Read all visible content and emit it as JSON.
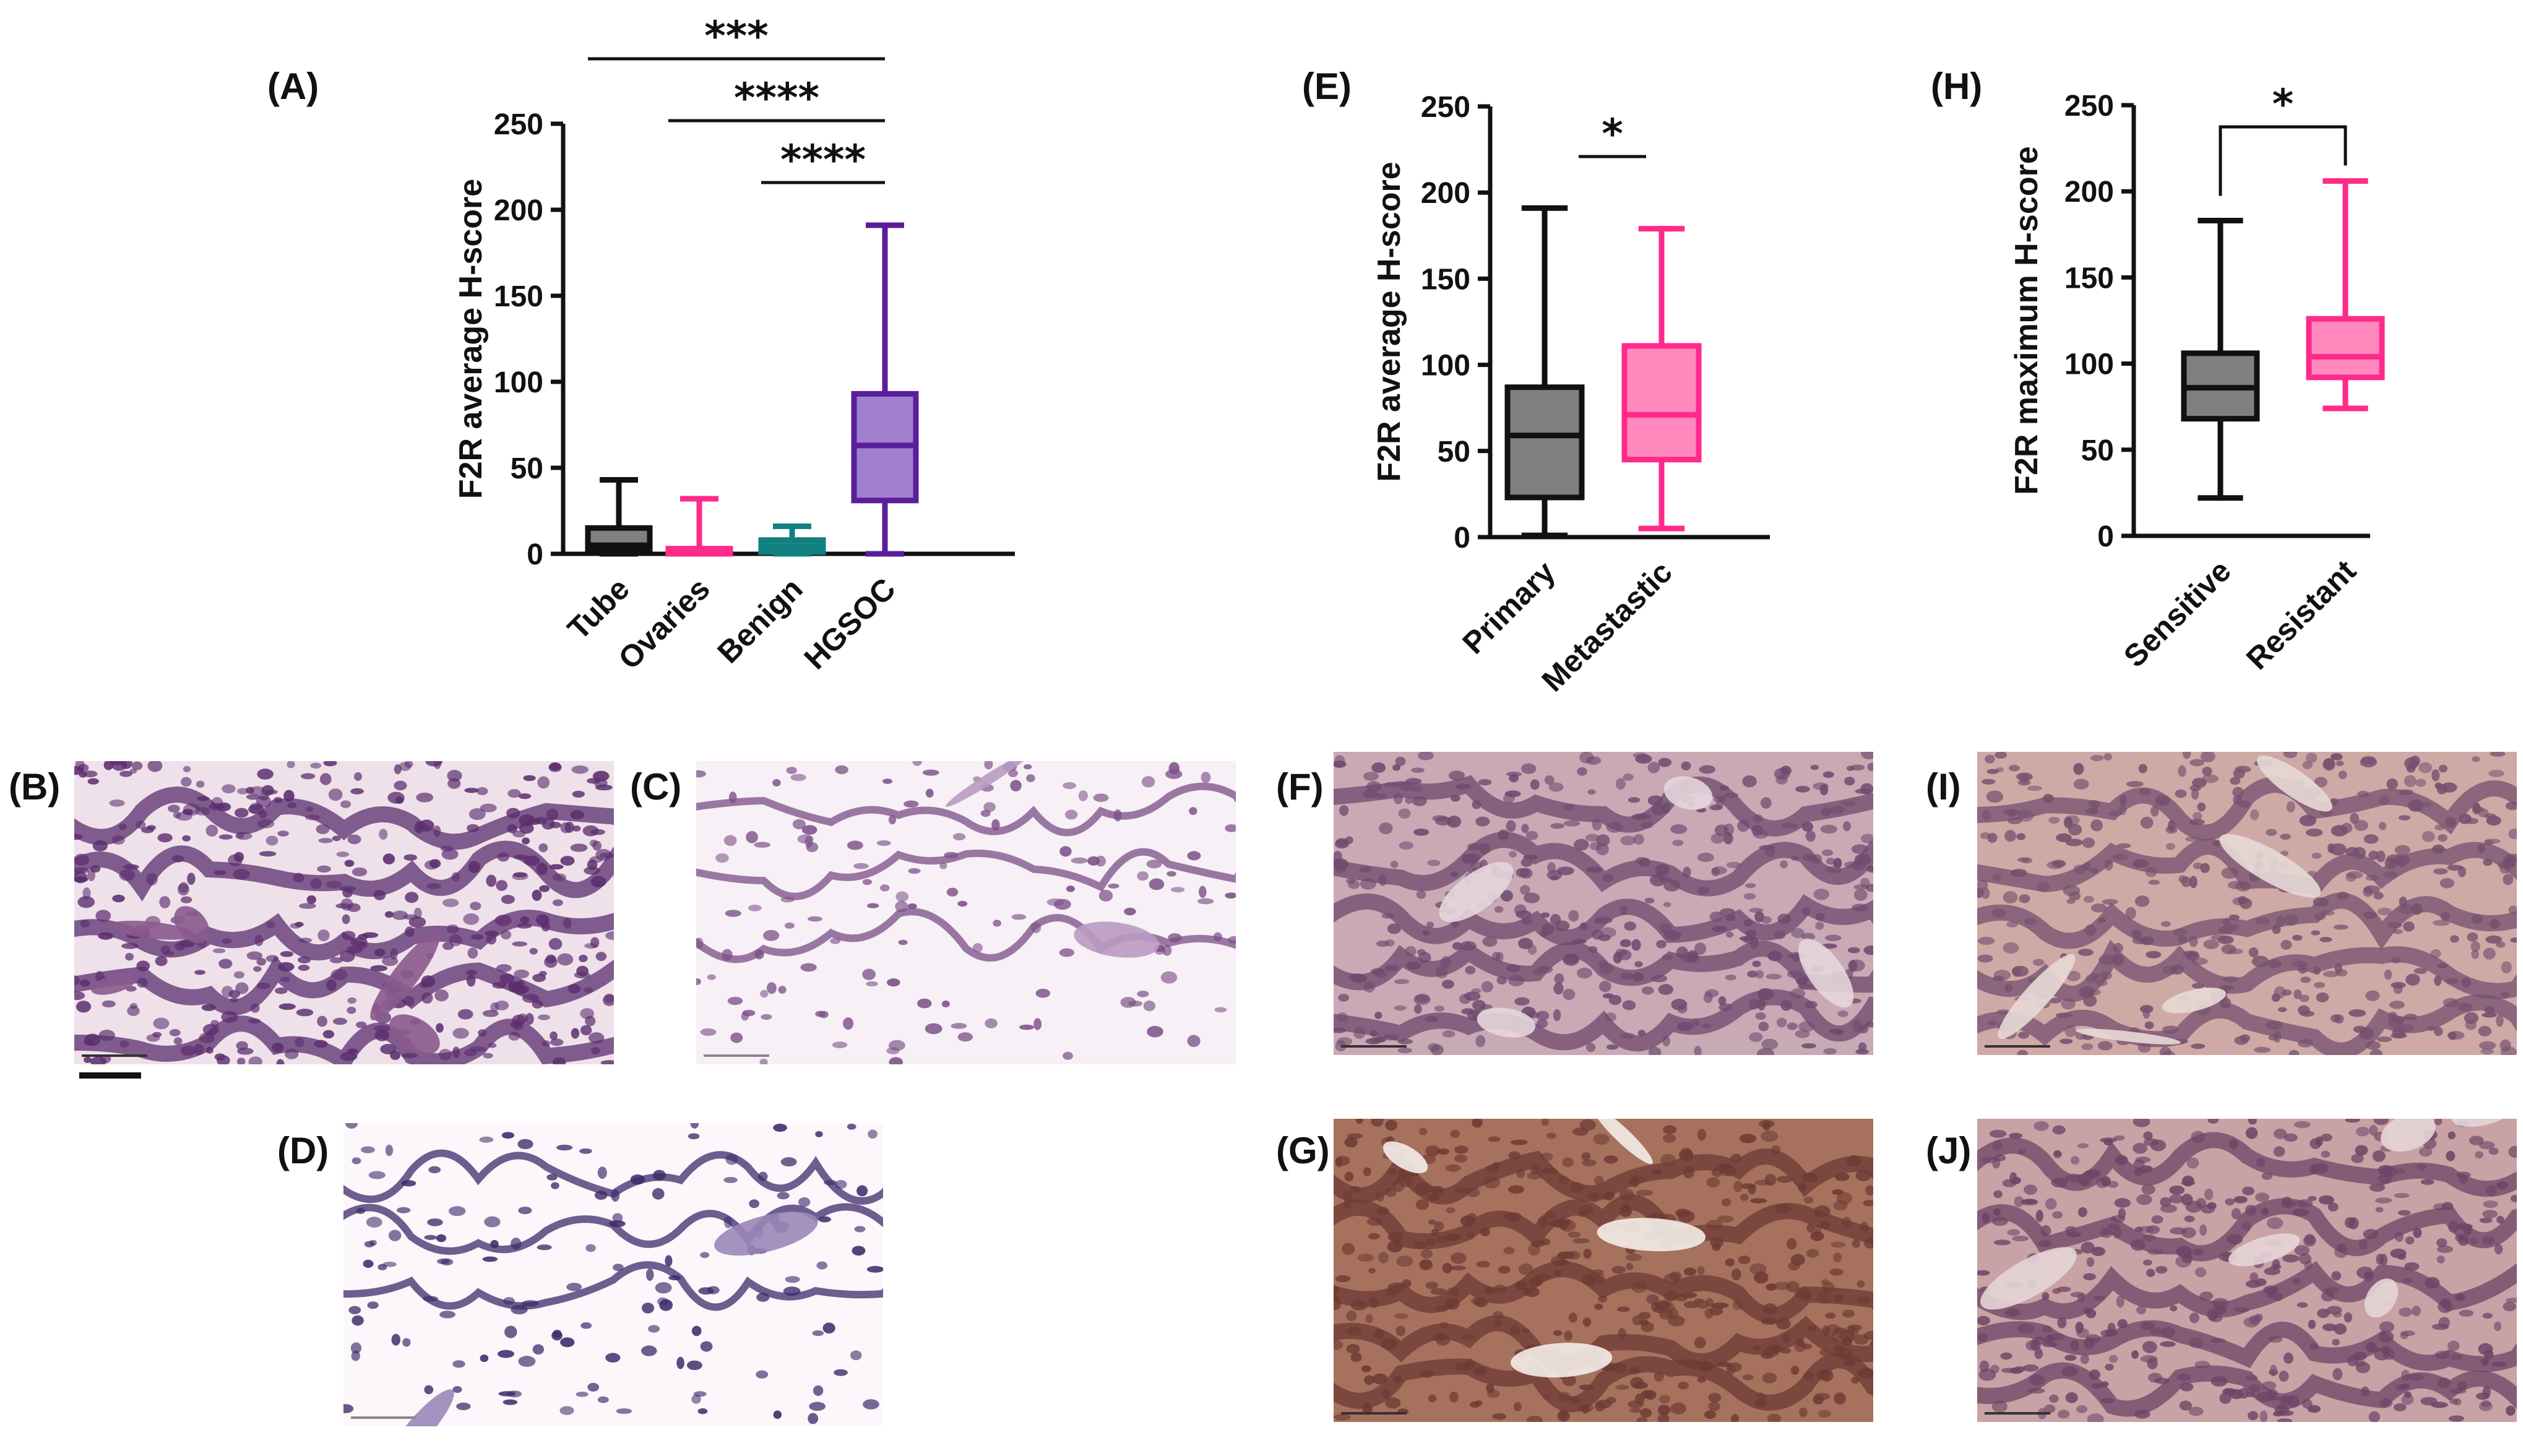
{
  "figure": {
    "panel_labels": {
      "A": "(A)",
      "B": "(B)",
      "C": "(C)",
      "D": "(D)",
      "E": "(E)",
      "F": "(F)",
      "G": "(G)",
      "H": "(H)",
      "I": "(I)",
      "J": "(J)"
    }
  },
  "chart_data": [
    {
      "id": "A",
      "type": "box",
      "ylabel": "F2R average H-score",
      "ylim": [
        0,
        250
      ],
      "yticks": [
        0,
        50,
        100,
        150,
        200,
        250
      ],
      "categories": [
        "Tube",
        "Ovaries",
        "Benign",
        "HGSOC"
      ],
      "boxes": [
        {
          "name": "Tube",
          "min": 0,
          "q1": 2,
          "median": 5,
          "q3": 15,
          "max": 43,
          "color": "#808080",
          "stroke": "#111111"
        },
        {
          "name": "Ovaries",
          "min": 0,
          "q1": 0,
          "median": 2,
          "q3": 3,
          "max": 32,
          "color": "#ff4fa0",
          "stroke": "#ff2a8a"
        },
        {
          "name": "Benign",
          "min": 0,
          "q1": 1,
          "median": 4,
          "q3": 8,
          "max": 16,
          "color": "#1a8a86",
          "stroke": "#128080"
        },
        {
          "name": "HGSOC",
          "min": 0,
          "q1": 31,
          "median": 63,
          "q3": 93,
          "max": 191,
          "color": "#a17fcf",
          "stroke": "#5a1e9a"
        }
      ],
      "significance": [
        {
          "from": "Tube",
          "to": "HGSOC",
          "label": "***"
        },
        {
          "from": "Ovaries",
          "to": "HGSOC",
          "label": "****"
        },
        {
          "from": "Benign",
          "to": "HGSOC",
          "label": "****"
        }
      ]
    },
    {
      "id": "E",
      "type": "box",
      "ylabel": "F2R average H-score",
      "ylim": [
        0,
        250
      ],
      "yticks": [
        0,
        50,
        100,
        150,
        200,
        250
      ],
      "categories": [
        "Primary",
        "Metastastic"
      ],
      "boxes": [
        {
          "name": "Primary",
          "min": 1,
          "q1": 23,
          "median": 59,
          "q3": 87,
          "max": 191,
          "color": "#808080",
          "stroke": "#111111"
        },
        {
          "name": "Metastastic",
          "min": 5,
          "q1": 45,
          "median": 71,
          "q3": 111,
          "max": 179,
          "color": "#ff88bd",
          "stroke": "#ff2a8a"
        }
      ],
      "significance": [
        {
          "from": "Primary",
          "to": "Metastastic",
          "label": "*"
        }
      ]
    },
    {
      "id": "H",
      "type": "box",
      "ylabel": "F2R maximum H-score",
      "ylim": [
        0,
        250
      ],
      "yticks": [
        0,
        50,
        100,
        150,
        200,
        250
      ],
      "categories": [
        "Sensitive",
        "Resistant"
      ],
      "boxes": [
        {
          "name": "Sensitive",
          "min": 22,
          "q1": 68,
          "median": 86,
          "q3": 106,
          "max": 183,
          "color": "#808080",
          "stroke": "#111111"
        },
        {
          "name": "Resistant",
          "min": 74,
          "q1": 92,
          "median": 104,
          "q3": 126,
          "max": 206,
          "color": "#ff88bd",
          "stroke": "#ff2a8a"
        }
      ],
      "significance": [
        {
          "from": "Sensitive",
          "to": "Resistant",
          "label": "*",
          "style": "bracket"
        }
      ]
    }
  ],
  "micrographs": [
    {
      "id": "B",
      "stain": "light",
      "base": "#efe1ea",
      "cell": "#5b2e6e",
      "accent": "#8a5a8e"
    },
    {
      "id": "C",
      "stain": "pale",
      "base": "#f7f0f6",
      "cell": "#7b4f86",
      "accent": "#b99ac2"
    },
    {
      "id": "D",
      "stain": "pale",
      "base": "#fbf7fa",
      "cell": "#3f2a6a",
      "accent": "#9a86b8"
    },
    {
      "id": "F",
      "stain": "moderate",
      "base": "#c9a9b4",
      "cell": "#6e4a6e",
      "accent": "#e6d6db"
    },
    {
      "id": "G",
      "stain": "strong",
      "base": "#a6725e",
      "cell": "#6e3a34",
      "accent": "#f4ece8"
    },
    {
      "id": "I",
      "stain": "moderate",
      "base": "#cfa9a6",
      "cell": "#75506d",
      "accent": "#e7d9d6"
    },
    {
      "id": "J",
      "stain": "moderate",
      "base": "#c9a2a6",
      "cell": "#6e4466",
      "accent": "#e4d5d8"
    }
  ]
}
